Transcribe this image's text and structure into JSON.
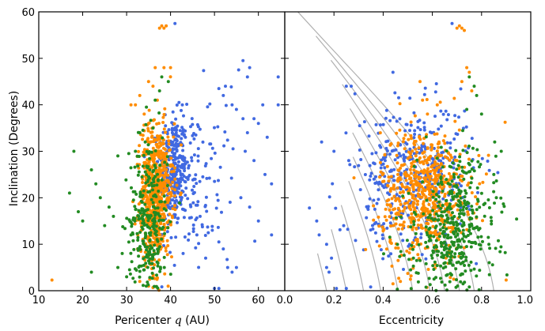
{
  "figure": {
    "ylabel": "Inclination (Degrees)"
  },
  "colors": {
    "blue": "#4169e1",
    "orange": "#ff8c00",
    "green": "#228b22",
    "curve": "#b0b0b0",
    "axis": "#000000"
  },
  "chart_data": [
    {
      "type": "scatter",
      "title": "",
      "xlabel": "Pericenter q (AU)",
      "xlabel_main": "Pericenter ",
      "xlabel_var": "q",
      "xlabel_unit": " (AU)",
      "ylabel": "Inclination (Degrees)",
      "xlim": [
        10,
        66
      ],
      "ylim": [
        0,
        60
      ],
      "xticks": [
        10,
        20,
        30,
        40,
        50,
        60
      ],
      "yticks": [
        0,
        10,
        20,
        30,
        40,
        50,
        60
      ],
      "series": [
        {
          "name": "blue",
          "color": "#4169e1",
          "clusters": [
            {
              "cx": 40.5,
              "cy": 26,
              "sx": 1.6,
              "sy": 6,
              "n": 260
            },
            {
              "cx": 43,
              "cy": 24,
              "sx": 2.8,
              "sy": 8,
              "n": 120
            },
            {
              "cx": 48,
              "cy": 22,
              "sx": 4,
              "sy": 10,
              "n": 60
            }
          ],
          "points": [
            [
              41,
              57.5
            ],
            [
              55.5,
              47.5
            ],
            [
              56.5,
              49.5
            ],
            [
              58,
              48
            ],
            [
              57.5,
              46
            ],
            [
              64.5,
              46
            ],
            [
              51,
              43.5
            ],
            [
              52.5,
              44
            ],
            [
              52,
              42
            ],
            [
              54,
              40
            ],
            [
              55,
              39
            ],
            [
              56.5,
              37
            ],
            [
              57.5,
              34
            ],
            [
              59,
              37
            ],
            [
              60,
              36
            ],
            [
              61,
              40
            ],
            [
              64.5,
              40
            ],
            [
              62,
              33
            ],
            [
              57,
              30
            ],
            [
              59,
              28
            ],
            [
              61.5,
              25
            ],
            [
              63,
              23
            ],
            [
              56,
              20
            ],
            [
              58,
              18
            ],
            [
              60,
              15
            ],
            [
              63,
              12
            ],
            [
              52,
              9
            ],
            [
              53,
              5
            ],
            [
              54,
              4
            ],
            [
              55,
              5
            ],
            [
              50,
              0.5
            ],
            [
              51,
              0.5
            ],
            [
              51,
              10.5
            ],
            [
              48,
              7
            ],
            [
              46,
              12
            ],
            [
              49.5,
              13
            ]
          ]
        },
        {
          "name": "orange",
          "color": "#ff8c00",
          "clusters": [
            {
              "cx": 37,
              "cy": 22,
              "sx": 1.8,
              "sy": 7,
              "n": 520
            },
            {
              "cx": 35.5,
              "cy": 17,
              "sx": 1.3,
              "sy": 9,
              "n": 110
            }
          ],
          "points": [
            [
              13,
              2.3
            ],
            [
              37.5,
              56.5
            ],
            [
              38,
              57
            ],
            [
              38.5,
              56.5
            ],
            [
              39,
              57
            ],
            [
              36.5,
              48
            ],
            [
              38.5,
              48
            ],
            [
              40,
              48
            ],
            [
              35,
              45
            ],
            [
              36,
              44
            ],
            [
              37,
              41
            ],
            [
              31,
              40
            ],
            [
              32,
              40
            ],
            [
              33,
              42
            ],
            [
              34,
              38
            ],
            [
              35,
              36
            ],
            [
              32.5,
              9
            ],
            [
              33,
              2
            ],
            [
              35,
              1
            ],
            [
              36,
              3
            ]
          ]
        },
        {
          "name": "green",
          "color": "#228b22",
          "clusters": [
            {
              "cx": 35,
              "cy": 15,
              "sx": 2.2,
              "sy": 9,
              "n": 300
            }
          ],
          "points": [
            [
              18,
              30
            ],
            [
              20,
              15
            ],
            [
              19,
              17
            ],
            [
              17,
              21
            ],
            [
              22,
              26
            ],
            [
              23,
              23
            ],
            [
              24,
              20
            ],
            [
              25,
              14
            ],
            [
              26,
              18
            ],
            [
              27,
              16
            ],
            [
              28,
              5
            ],
            [
              29,
              8
            ],
            [
              30,
              3
            ],
            [
              31,
              12
            ],
            [
              32,
              30
            ],
            [
              33,
              34
            ],
            [
              28,
              29
            ],
            [
              38,
              46
            ],
            [
              39.5,
              45
            ],
            [
              37.5,
              43
            ],
            [
              36.5,
              41
            ],
            [
              34.5,
              39.5
            ],
            [
              36,
              35
            ],
            [
              22,
              4
            ]
          ]
        }
      ]
    },
    {
      "type": "scatter",
      "title": "",
      "xlabel": "Eccentricity",
      "ylabel": "",
      "xlim": [
        0.0,
        1.0
      ],
      "ylim": [
        0,
        60
      ],
      "xticks": [
        "0.0",
        "0.2",
        "0.4",
        "0.6",
        "0.8",
        "1.0"
      ],
      "xtick_values": [
        0.0,
        0.2,
        0.4,
        0.6,
        0.8,
        1.0
      ],
      "curves": {
        "description": "constant pericenter reference curves",
        "q_over_a": [
          0.0,
          0.0,
          0.0
        ],
        "eccentricities_at_zero": [
          0.17,
          0.25,
          0.32,
          0.39,
          0.46,
          0.52,
          0.59,
          0.65,
          0.71,
          0.77,
          0.85
        ]
      },
      "series": [
        {
          "name": "blue",
          "color": "#4169e1",
          "clusters": [
            {
              "cx": 0.55,
              "cy": 26,
              "sx": 0.11,
              "sy": 7,
              "n": 320
            },
            {
              "cx": 0.4,
              "cy": 20,
              "sx": 0.1,
              "sy": 9,
              "n": 80
            }
          ],
          "points": [
            [
              0.68,
              57.5
            ],
            [
              0.27,
              44
            ],
            [
              0.25,
              44
            ],
            [
              0.44,
              47
            ],
            [
              0.17,
              5
            ],
            [
              0.18,
              4
            ],
            [
              0.14,
              12
            ],
            [
              0.13,
              15
            ],
            [
              0.17,
              10
            ],
            [
              0.26,
              28
            ],
            [
              0.2,
              30
            ],
            [
              0.15,
              32
            ],
            [
              0.25,
              0.5
            ],
            [
              0.21,
              0.5
            ],
            [
              0.19,
              7
            ]
          ]
        },
        {
          "name": "orange",
          "color": "#ff8c00",
          "clusters": [
            {
              "cx": 0.57,
              "cy": 21,
              "sx": 0.09,
              "sy": 7,
              "n": 620
            }
          ],
          "points": [
            [
              0.9,
              2.3
            ],
            [
              0.7,
              56.5
            ],
            [
              0.71,
              57
            ],
            [
              0.72,
              56.5
            ],
            [
              0.73,
              56
            ],
            [
              0.74,
              48
            ],
            [
              0.75,
              47
            ],
            [
              0.72,
              45
            ],
            [
              0.76,
              43
            ],
            [
              0.55,
              45
            ],
            [
              0.56,
              41
            ],
            [
              0.62,
              40
            ],
            [
              0.58,
              38
            ],
            [
              0.47,
              2
            ],
            [
              0.44,
              1.5
            ]
          ]
        },
        {
          "name": "green",
          "color": "#228b22",
          "clusters": [
            {
              "cx": 0.7,
              "cy": 14,
              "sx": 0.08,
              "sy": 8,
              "n": 360
            },
            {
              "cx": 0.62,
              "cy": 8,
              "sx": 0.1,
              "sy": 6,
              "n": 90
            }
          ],
          "points": [
            [
              0.88,
              30
            ],
            [
              0.85,
              25
            ],
            [
              0.86,
              20
            ],
            [
              0.84,
              15
            ],
            [
              0.8,
              38
            ],
            [
              0.78,
              42
            ],
            [
              0.77,
              44
            ],
            [
              0.75,
              46
            ],
            [
              0.74,
              39
            ],
            [
              0.83,
              10
            ]
          ]
        }
      ]
    }
  ]
}
